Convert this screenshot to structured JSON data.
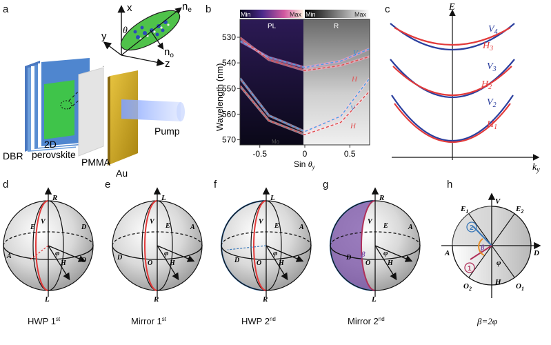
{
  "panels": {
    "a": {
      "label": "a",
      "axes": {
        "x": "x",
        "y": "y",
        "z": "z",
        "theta": "θ"
      },
      "crystal": {
        "ne": "n",
        "ne_sub": "e",
        "no": "n",
        "no_sub": "o"
      },
      "labels": {
        "dbr": "DBR",
        "perovskite_1": "2D",
        "perovskite_2": "perovskite",
        "pmma": "PMMA",
        "au": "Au",
        "pump": "Pump"
      }
    },
    "b": {
      "label": "b",
      "pl_label": "PL",
      "r_label": "R",
      "cb_min": "Min",
      "cb_max": "Max",
      "ylabel": "Wavelength (nm)",
      "xlabel_prefix": "Sin ",
      "xlabel_theta": "θ",
      "xlabel_sub": "y",
      "yticks": [
        "530",
        "540",
        "550",
        "560",
        "570"
      ],
      "xticks": [
        "-0.5",
        "0",
        "0.5"
      ],
      "mode_labels": {
        "v_upper": "V",
        "h_upper": "H",
        "v_lower": "V",
        "h_lower": "H"
      },
      "fig_note": "Mo"
    },
    "c": {
      "label": "c",
      "e_axis": "E",
      "k_axis": "k",
      "k_sub": "y",
      "bands": [
        {
          "v": "V",
          "v_sub": "4",
          "h": "H",
          "h_sub": "3"
        },
        {
          "v": "V",
          "v_sub": "3",
          "h": "H",
          "h_sub": "2"
        },
        {
          "v": "V",
          "v_sub": "2",
          "h": "H",
          "h_sub": "1"
        }
      ],
      "colors": {
        "v": "#2b3f9e",
        "h": "#e23a3a"
      }
    },
    "d": {
      "label": "d",
      "caption": "HWP 1",
      "caption_sup": "st",
      "points": {
        "top": "R",
        "bottom": "L",
        "E": "E",
        "V": "V",
        "D": "D",
        "A": "A",
        "O": "O",
        "H": "H",
        "phi": "φ"
      }
    },
    "e": {
      "label": "e",
      "caption": "Mirror 1",
      "caption_sup": "st",
      "points": {
        "top": "L",
        "bottom": "R",
        "E": "E",
        "V": "V",
        "D": "D",
        "A": "A",
        "O": "O",
        "H": "H",
        "phi": "φ"
      }
    },
    "f": {
      "label": "f",
      "caption": "HWP 2",
      "caption_sup": "nd",
      "points": {
        "top": "L",
        "bottom": "R",
        "E": "E",
        "V": "V",
        "D": "D",
        "A": "A",
        "O": "O",
        "H": "H",
        "phi": "φ"
      }
    },
    "g": {
      "label": "g",
      "caption": "Mirror 2",
      "caption_sup": "nd",
      "points": {
        "top": "R",
        "bottom": "L",
        "E": "E",
        "V": "V",
        "D": "D",
        "A": "A",
        "O": "O",
        "H": "H",
        "phi": "φ",
        "beta": "β"
      }
    },
    "h": {
      "label": "h",
      "caption": "β=2φ",
      "points": {
        "V": "V",
        "H": "H",
        "A": "A",
        "D": "D",
        "E1": "E",
        "E1_sub": "1",
        "E2": "E",
        "E2_sub": "2",
        "O1": "O",
        "O1_sub": "1",
        "O2": "O",
        "O2_sub": "2",
        "phi": "φ",
        "beta": "β",
        "step1": "1",
        "step2": "2"
      }
    }
  },
  "chart_data": {
    "type": "line",
    "title": "",
    "xlabel": "Sin θy",
    "ylabel": "Wavelength (nm)",
    "xlim": [
      -0.72,
      0.72
    ],
    "ylim": [
      523,
      572
    ],
    "yticks": [
      530,
      540,
      550,
      560,
      570
    ],
    "xticks": [
      -0.5,
      0,
      0.5
    ],
    "series": [
      {
        "name": "V (upper)",
        "x": [
          -0.72,
          -0.4,
          0,
          0.4,
          0.72
        ],
        "y": [
          531.5,
          537.8,
          541.8,
          539.3,
          534.5
        ]
      },
      {
        "name": "H (upper)",
        "x": [
          -0.72,
          -0.4,
          0,
          0.4,
          0.72
        ],
        "y": [
          530.2,
          538.8,
          543.0,
          541.0,
          537.5
        ]
      },
      {
        "name": "V (lower)",
        "x": [
          -0.72,
          -0.4,
          0,
          0.4,
          0.72
        ],
        "y": [
          546.0,
          560.5,
          566.8,
          560.8,
          546.0
        ]
      },
      {
        "name": "H (lower)",
        "x": [
          -0.72,
          -0.4,
          0,
          0.4,
          0.72
        ],
        "y": [
          549.0,
          562.5,
          568.0,
          563.2,
          551.0
        ]
      }
    ]
  }
}
